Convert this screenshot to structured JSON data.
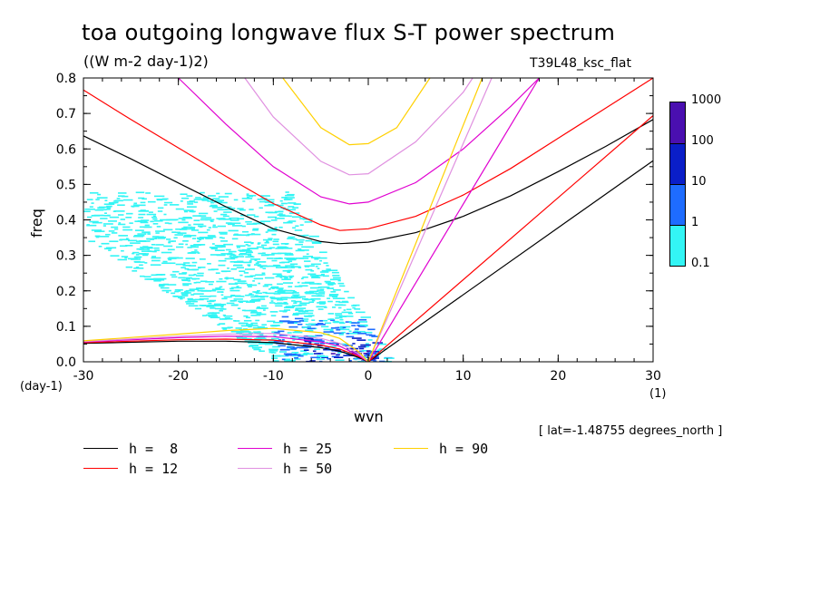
{
  "title": "toa outgoing longwave flux S-T power spectrum",
  "units": "((W m-2 day-1)2)",
  "run_name": "T39L48_ksc_flat",
  "lat_note": "[ lat=-1.48755 degrees_north ]",
  "colorbar": {
    "labels": [
      "1000",
      "100",
      "10",
      "1",
      "0.1"
    ],
    "colors": [
      "#4a0fb0",
      "#0a1ec8",
      "#1e6cff",
      "#33f5f5"
    ]
  },
  "chart_data": {
    "type": "line",
    "title": "toa outgoing longwave flux S-T power spectrum",
    "subtitle": "((W m-2 day-1)2)",
    "xlabel": "wvn",
    "ylabel": "freq",
    "x_unit": "(1)",
    "y_unit": "(day-1)",
    "xlim": [
      -30,
      30
    ],
    "ylim": [
      0,
      0.8
    ],
    "x_ticks": [
      -30,
      -20,
      -10,
      0,
      10,
      20,
      30
    ],
    "x_tick_labels": [
      "-30",
      "-20",
      "-10",
      "0",
      "10",
      "20",
      "30"
    ],
    "y_ticks": [
      0.0,
      0.1,
      0.2,
      0.3,
      0.4,
      0.5,
      0.6,
      0.7,
      0.8
    ],
    "y_tick_labels": [
      "0.0",
      "0.1",
      "0.2",
      "0.3",
      "0.4",
      "0.5",
      "0.6",
      "0.7",
      "0.8"
    ],
    "grid": false,
    "legend_position": "bottom",
    "series": [
      {
        "name": "h =  8",
        "color": "#000000",
        "kelvin": {
          "x": [
            0,
            30
          ],
          "y": [
            0,
            0.567
          ]
        },
        "rossby": {
          "x": [
            -30,
            -20,
            -15,
            -10,
            -5,
            -3,
            -1,
            0
          ],
          "y": [
            0.052,
            0.058,
            0.058,
            0.054,
            0.04,
            0.03,
            0.012,
            0
          ]
        },
        "ig": {
          "x": [
            -30,
            -25,
            -20,
            -15,
            -10,
            -5,
            -3,
            0,
            5,
            10,
            15,
            20,
            25,
            30
          ],
          "y": [
            0.637,
            0.572,
            0.504,
            0.437,
            0.375,
            0.339,
            0.333,
            0.337,
            0.364,
            0.41,
            0.468,
            0.536,
            0.607,
            0.683
          ]
        }
      },
      {
        "name": "h = 12",
        "color": "#ff0000",
        "kelvin": {
          "x": [
            0,
            30
          ],
          "y": [
            0,
            0.694
          ]
        },
        "rossby": {
          "x": [
            -30,
            -20,
            -15,
            -10,
            -5,
            -3,
            -1,
            0
          ],
          "y": [
            0.054,
            0.062,
            0.064,
            0.061,
            0.047,
            0.036,
            0.015,
            0
          ]
        },
        "ig": {
          "x": [
            -30,
            -25,
            -20,
            -15,
            -10,
            -5,
            -3,
            0,
            5,
            10,
            15,
            20,
            25,
            30
          ],
          "y": [
            0.766,
            0.683,
            0.603,
            0.523,
            0.446,
            0.386,
            0.37,
            0.375,
            0.41,
            0.47,
            0.545,
            0.63,
            0.715,
            0.8
          ]
        }
      },
      {
        "name": "h = 25",
        "color": "#e000d0",
        "kelvin": {
          "x": [
            0,
            18
          ],
          "y": [
            0,
            0.8
          ]
        },
        "rossby": {
          "x": [
            -30,
            -20,
            -15,
            -10,
            -5,
            -3,
            -1,
            0
          ],
          "y": [
            0.056,
            0.068,
            0.072,
            0.071,
            0.056,
            0.044,
            0.018,
            0
          ]
        },
        "ig": {
          "x": [
            -20,
            -15,
            -10,
            -5,
            -2,
            0,
            5,
            10,
            15,
            18
          ],
          "y": [
            0.8,
            0.67,
            0.55,
            0.465,
            0.445,
            0.45,
            0.505,
            0.6,
            0.72,
            0.8
          ]
        }
      },
      {
        "name": "h = 50",
        "color": "#e090e0",
        "kelvin": {
          "x": [
            0,
            13
          ],
          "y": [
            0,
            0.8
          ]
        },
        "rossby": {
          "x": [
            -30,
            -20,
            -15,
            -10,
            -5,
            -3,
            -1,
            0
          ],
          "y": [
            0.057,
            0.072,
            0.078,
            0.08,
            0.066,
            0.052,
            0.022,
            0
          ]
        },
        "ig": {
          "x": [
            -13,
            -10,
            -5,
            -2,
            0,
            5,
            10,
            11
          ],
          "y": [
            0.8,
            0.69,
            0.565,
            0.527,
            0.53,
            0.62,
            0.76,
            0.8
          ]
        }
      },
      {
        "name": "h = 90",
        "color": "#ffd000",
        "kelvin": {
          "x": [
            0,
            12
          ],
          "y": [
            0,
            0.8
          ]
        },
        "rossby": {
          "x": [
            -30,
            -20,
            -15,
            -10,
            -5,
            -3,
            -1,
            0
          ],
          "y": [
            0.059,
            0.078,
            0.088,
            0.094,
            0.082,
            0.066,
            0.028,
            0
          ]
        },
        "ig": {
          "x": [
            -9,
            -5,
            -2,
            0,
            3,
            6.5
          ],
          "y": [
            0.8,
            0.66,
            0.612,
            0.615,
            0.66,
            0.8
          ]
        }
      }
    ]
  },
  "legend": [
    {
      "label": "h =  8",
      "color": "#000000"
    },
    {
      "label": "h = 12",
      "color": "#ff0000"
    },
    {
      "label": "h = 25",
      "color": "#e000d0"
    },
    {
      "label": "h = 50",
      "color": "#e090e0"
    },
    {
      "label": "h = 90",
      "color": "#ffd000"
    }
  ]
}
